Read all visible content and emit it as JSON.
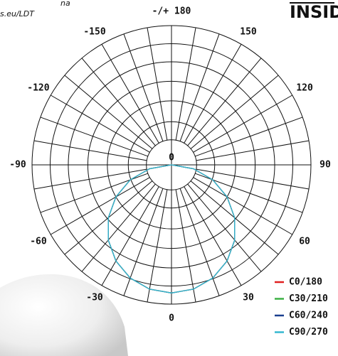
{
  "header": {
    "note_top": "na",
    "note_link": "s.eu/LDT",
    "brand": "INSIDE"
  },
  "chart_data": {
    "type": "polar",
    "angle_labels": [
      {
        "value": 180,
        "label": "-/+ 180"
      },
      {
        "value": 150,
        "label": "150"
      },
      {
        "value": 120,
        "label": "120"
      },
      {
        "value": 90,
        "label": "90"
      },
      {
        "value": 60,
        "label": "60"
      },
      {
        "value": 30,
        "label": "30"
      },
      {
        "value": 0,
        "label": "0"
      },
      {
        "value": -30,
        "label": "-30"
      },
      {
        "value": -60,
        "label": "-60"
      },
      {
        "value": -90,
        "label": "-90"
      },
      {
        "value": -120,
        "label": "-120"
      },
      {
        "value": -150,
        "label": "-150"
      }
    ],
    "center_label": "0",
    "rlim": [
      0,
      100
    ],
    "rticks": [
      18,
      31,
      46,
      60,
      74,
      87,
      100
    ],
    "spoke_step": 10,
    "angles": [
      -90,
      -80,
      -70,
      -60,
      -50,
      -40,
      -30,
      -20,
      -10,
      0,
      10,
      20,
      30,
      40,
      50,
      60,
      70,
      80,
      90
    ],
    "series": [
      {
        "name": "C0/180",
        "color": "#e02020",
        "values": [
          0,
          16,
          31.5,
          46,
          59.1,
          70.5,
          79.7,
          86.5,
          90.6,
          92,
          90.6,
          86.5,
          79.7,
          70.5,
          59.1,
          46,
          31.5,
          16,
          0
        ]
      },
      {
        "name": "C30/210",
        "color": "#3cb043",
        "values": [
          0,
          16,
          31.5,
          46,
          59.1,
          70.5,
          79.7,
          86.5,
          90.6,
          92,
          90.6,
          86.5,
          79.7,
          70.5,
          59.1,
          46,
          31.5,
          16,
          0
        ]
      },
      {
        "name": "C60/240",
        "color": "#1a3f8f",
        "values": [
          0,
          16,
          31.5,
          46,
          59.1,
          70.5,
          79.7,
          86.5,
          90.6,
          92,
          90.6,
          86.5,
          79.7,
          70.5,
          59.1,
          46,
          31.5,
          16,
          0
        ]
      },
      {
        "name": "C90/270",
        "color": "#35b8d0",
        "values": [
          0,
          16,
          31.5,
          46,
          59.1,
          70.5,
          79.7,
          86.5,
          90.6,
          92,
          90.6,
          86.5,
          79.7,
          70.5,
          59.1,
          46,
          31.5,
          16,
          0
        ]
      }
    ]
  }
}
